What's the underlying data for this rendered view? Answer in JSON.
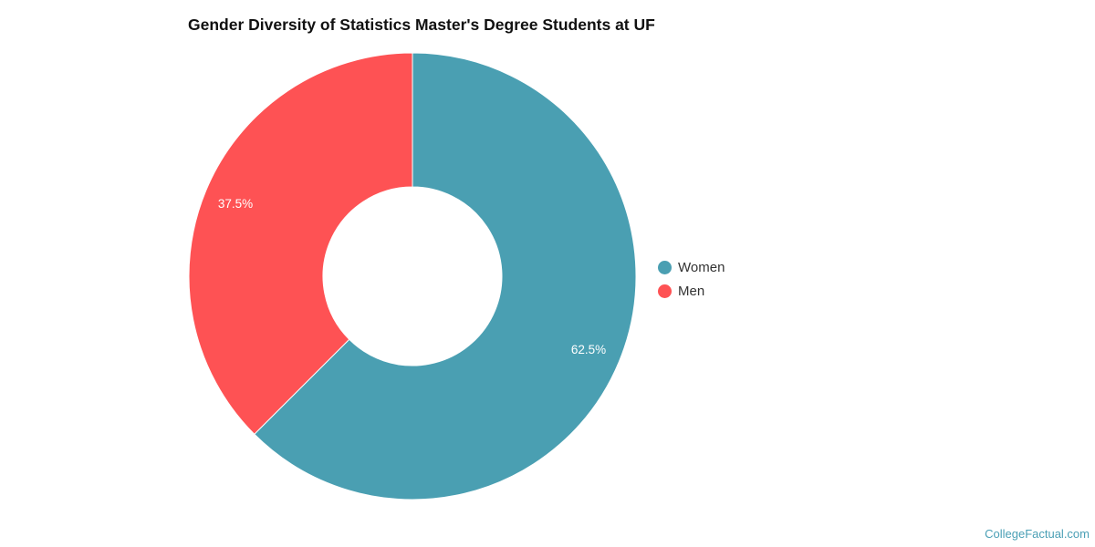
{
  "title": "Gender Diversity of Statistics Master's Degree Students at UF",
  "watermark": "CollegeFactual.com",
  "colors": {
    "women": "#4a9fb2",
    "men": "#fe5254",
    "watermark": "#4a9fb5"
  },
  "legend": [
    {
      "label": "Women",
      "color": "#4a9fb2"
    },
    {
      "label": "Men",
      "color": "#fe5254"
    }
  ],
  "slice_labels": {
    "women": "62.5%",
    "men": "37.5%"
  },
  "chart_data": {
    "type": "pie",
    "subtype": "donut",
    "title": "Gender Diversity of Statistics Master's Degree Students at UF",
    "categories": [
      "Women",
      "Men"
    ],
    "values": [
      62.5,
      37.5
    ],
    "unit": "%",
    "data_labels": [
      "62.5%",
      "37.5%"
    ],
    "colors": [
      "#4a9fb2",
      "#fe5254"
    ],
    "legend_position": "right",
    "start_angle": "12 o'clock, clockwise"
  }
}
